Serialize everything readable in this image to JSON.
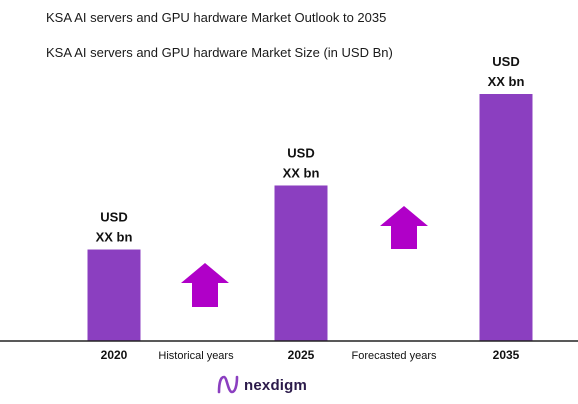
{
  "chart_data": {
    "type": "bar",
    "title": "KSA AI servers and GPU hardware Market Outlook to 2035",
    "subtitle": "KSA AI servers and GPU hardware Market Size (in USD Bn)",
    "categories": [
      "2020",
      "2025",
      "2035"
    ],
    "values": [
      1.0,
      1.7,
      2.7
    ],
    "value_labels": [
      {
        "line1": "USD",
        "line2": "XX bn"
      },
      {
        "line1": "USD",
        "line2": "XX bn"
      },
      {
        "line1": "USD",
        "line2": "XX bn"
      }
    ],
    "period_labels": [
      "Historical years",
      "Forecasted years"
    ],
    "ylim": [
      0,
      2.7
    ],
    "grid": false,
    "bar_color": "#8b3fc0",
    "arrow_color": "#b000c8"
  },
  "brand": {
    "name": "nexdigm",
    "logo_color": "#8b3fc0"
  }
}
